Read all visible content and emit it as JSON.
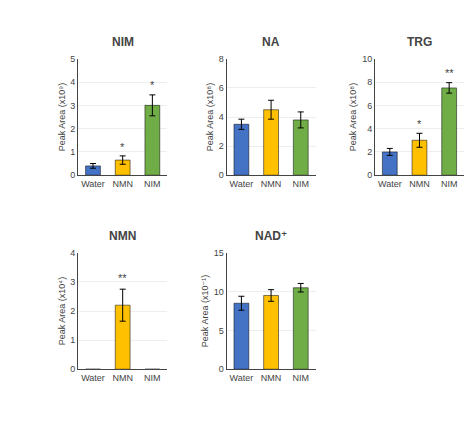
{
  "chart_data": [
    {
      "type": "bar",
      "title": "NIM",
      "ylabel": "Peak Area (x10⁹)",
      "categories": [
        "Water",
        "NMN",
        "NIM"
      ],
      "values": [
        0.4,
        0.65,
        3.0
      ],
      "errors": [
        0.1,
        0.18,
        0.45
      ],
      "colors": [
        "#4472C4",
        "#FFC000",
        "#70AD47"
      ],
      "ylim": [
        0,
        5
      ],
      "yticks": [
        0,
        1,
        2,
        3,
        4,
        5
      ],
      "annotations": [
        {
          "category": "NMN",
          "text": "*",
          "y": 0.88
        },
        {
          "category": "NIM",
          "text": "*",
          "y": 3.55
        }
      ]
    },
    {
      "type": "bar",
      "title": "NA",
      "ylabel": "Peak Area (x10⁸)",
      "categories": [
        "Water",
        "NMN",
        "NIM"
      ],
      "values": [
        3.5,
        4.5,
        3.8
      ],
      "errors": [
        0.35,
        0.65,
        0.55
      ],
      "colors": [
        "#4472C4",
        "#FFC000",
        "#70AD47"
      ],
      "ylim": [
        0,
        8
      ],
      "yticks": [
        0,
        2,
        4,
        6,
        8
      ]
    },
    {
      "type": "bar",
      "title": "TRG",
      "ylabel": "Peak Area (x10⁸)",
      "categories": [
        "Water",
        "NMN",
        "NIM"
      ],
      "values": [
        2.0,
        3.0,
        7.5
      ],
      "errors": [
        0.3,
        0.6,
        0.45
      ],
      "colors": [
        "#4472C4",
        "#FFC000",
        "#70AD47"
      ],
      "ylim": [
        0,
        10
      ],
      "yticks": [
        0,
        2,
        4,
        6,
        8,
        10
      ],
      "annotations": [
        {
          "category": "NMN",
          "text": "*",
          "y": 3.7
        },
        {
          "category": "NIM",
          "text": "**",
          "y": 8.1
        }
      ]
    },
    {
      "type": "bar",
      "title": "NMN",
      "ylabel": "Peak Area (x10⁴)",
      "categories": [
        "Water",
        "NMN",
        "NIM"
      ],
      "values": [
        0.0,
        2.2,
        0.0
      ],
      "errors": [
        0.0,
        0.55,
        0.0
      ],
      "colors": [
        "#4472C4",
        "#FFC000",
        "#70AD47"
      ],
      "ylim": [
        0,
        4
      ],
      "yticks": [
        0,
        1,
        2,
        3,
        4
      ],
      "annotations": [
        {
          "category": "NMN",
          "text": "**",
          "y": 2.85
        }
      ]
    },
    {
      "type": "bar",
      "title": "NAD⁺",
      "ylabel": "Peak Area (x10⁻¹)",
      "categories": [
        "Water",
        "NMN",
        "NIM"
      ],
      "values": [
        8.5,
        9.5,
        10.5
      ],
      "errors": [
        0.9,
        0.75,
        0.55
      ],
      "colors": [
        "#4472C4",
        "#FFC000",
        "#70AD47"
      ],
      "ylim": [
        0,
        15
      ],
      "yticks": [
        0,
        5,
        10,
        15
      ]
    }
  ]
}
